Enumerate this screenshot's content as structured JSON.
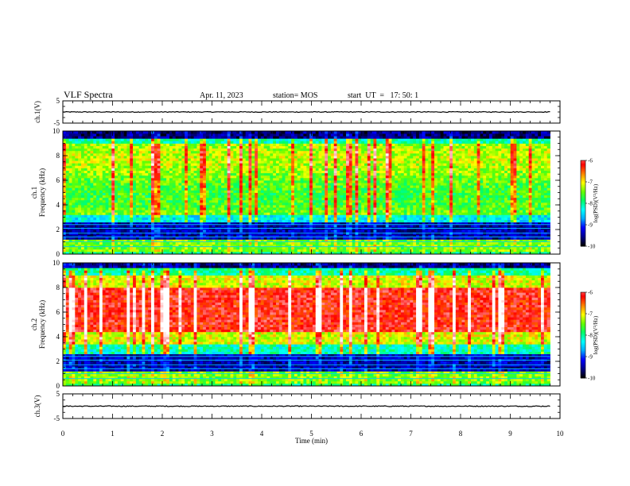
{
  "header": {
    "title": "VLF Spectra",
    "date": "Apr. 11, 2023",
    "station": "station= MOS",
    "start": "start  UT  =   17: 50: 1"
  },
  "colors": {
    "spectrogram_scale": [
      "#000000",
      "#00008b",
      "#0000ff",
      "#00aaff",
      "#00ffff",
      "#00ff66",
      "#66ff00",
      "#ffff00",
      "#ff8000",
      "#ff0000",
      "#ff9999",
      "#ffffff"
    ],
    "frame": "#000000",
    "background": "#ffffff"
  },
  "chart_data": [
    {
      "type": "line",
      "panel": "ch1-voltage",
      "ylabel": "ch.1(V)",
      "ylim": [
        -5,
        5
      ],
      "yticks": [
        "5",
        "-5"
      ],
      "series": [
        {
          "values_description_free": true,
          "x": [
            0,
            9.8
          ],
          "y": [
            0,
            0
          ]
        }
      ]
    },
    {
      "type": "heatmap",
      "panel": "ch1-spectrogram",
      "ylabel_line1": "ch.1",
      "ylabel_line2": "Frequency (kHz)",
      "ylim": [
        0,
        10
      ],
      "yticks": [
        "0",
        "2",
        "4",
        "6",
        "8",
        "10"
      ],
      "data_extent_x": [
        0,
        9.8
      ],
      "colorbar": {
        "label": "log(PSD)(V²/Hz)",
        "range": [
          -10,
          -6
        ],
        "ticks": [
          "-6",
          "-7",
          "-8",
          "-9",
          "-10"
        ]
      }
    },
    {
      "type": "heatmap",
      "panel": "ch2-spectrogram",
      "ylabel_line1": "ch.2",
      "ylabel_line2": "Frequency (kHz)",
      "ylim": [
        0,
        10
      ],
      "yticks": [
        "0",
        "2",
        "4",
        "6",
        "8",
        "10"
      ],
      "data_extent_x": [
        0,
        9.8
      ],
      "colorbar": {
        "label": "log(PSD)(V²/Hz)",
        "range": [
          -10,
          -6
        ],
        "ticks": [
          "-6",
          "-7",
          "-8",
          "-9",
          "-10"
        ]
      }
    },
    {
      "type": "line",
      "panel": "ch3-voltage",
      "ylabel": "ch.3(V)",
      "ylim": [
        -5,
        5
      ],
      "yticks": [
        "5",
        "-5"
      ],
      "series": [
        {
          "x": [
            0,
            9.8
          ],
          "y": [
            0,
            0
          ]
        }
      ]
    }
  ],
  "xaxis": {
    "label": "Time (min)",
    "range": [
      0,
      10
    ],
    "ticks": [
      "0",
      "1",
      "2",
      "3",
      "4",
      "5",
      "6",
      "7",
      "8",
      "9",
      "10"
    ]
  }
}
